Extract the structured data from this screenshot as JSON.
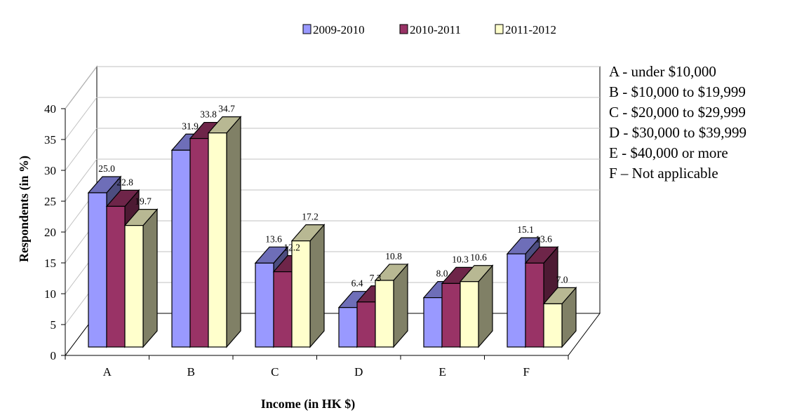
{
  "chart_data": {
    "type": "bar",
    "title": "",
    "xlabel": "Income (in HK $)",
    "ylabel": "Respondents (in %)",
    "ylim": [
      0,
      40
    ],
    "yticks": [
      "0",
      "5",
      "10",
      "15",
      "20",
      "25",
      "30",
      "35",
      "40"
    ],
    "categories": [
      "A",
      "B",
      "C",
      "D",
      "E",
      "F"
    ],
    "series": [
      {
        "name": "2009-2010",
        "values": [
          25.0,
          31.9,
          13.6,
          6.4,
          8.0,
          15.1
        ],
        "labels": [
          "25.0",
          "31.9",
          "13.6",
          "6.4",
          "8.0",
          "15.1"
        ],
        "color": "#9999ff"
      },
      {
        "name": "2010-2011",
        "values": [
          22.8,
          33.8,
          12.2,
          7.3,
          10.3,
          13.6
        ],
        "labels": [
          "22.8",
          "33.8",
          "12.2",
          "7.3",
          "10.3",
          "13.6"
        ],
        "color": "#993366"
      },
      {
        "name": "2011-2012",
        "values": [
          19.7,
          34.7,
          17.2,
          10.8,
          10.6,
          7.0
        ],
        "labels": [
          "19.7",
          "34.7",
          "17.2",
          "10.8",
          "10.6",
          "7.0"
        ],
        "color": "#ffffcc"
      }
    ],
    "grid": true,
    "legend": "top-right",
    "notes": [
      "A - under $10,000",
      "B - $10,000 to $19,999",
      "C - $20,000 to $29,999",
      "D - $30,000 to $39,999",
      "E - $40,000 or more",
      "F – Not applicable"
    ]
  }
}
